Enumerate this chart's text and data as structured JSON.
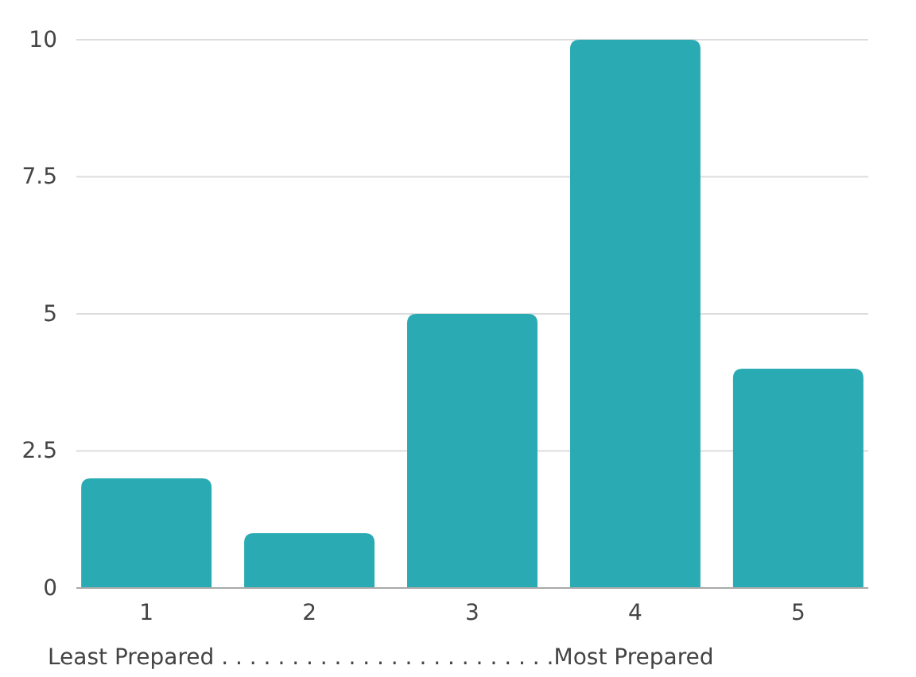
{
  "chart_data": {
    "type": "bar",
    "categories": [
      "1",
      "2",
      "3",
      "4",
      "5"
    ],
    "values": [
      2,
      1,
      5,
      10,
      4
    ],
    "color": "#2aabb3",
    "xlabel": "Least Prepared . . . . . . . . . . . . . . . . . . . . . . . .Most Prepared",
    "ylim": [
      0,
      10
    ],
    "yticks": [
      0,
      2.5,
      5,
      7.5,
      10
    ],
    "grid": "y"
  }
}
